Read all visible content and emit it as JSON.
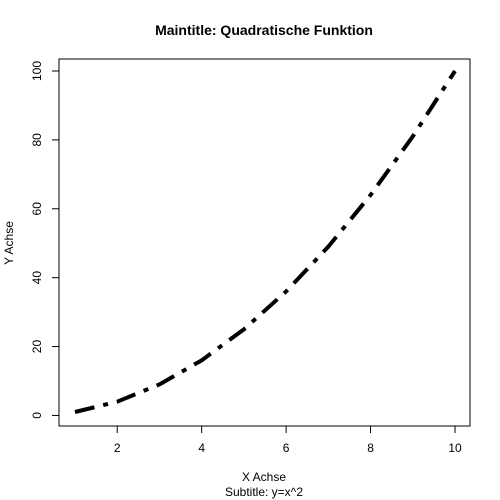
{
  "chart_data": {
    "type": "line",
    "title": "Maintitle: Quadratische Funktion",
    "subtitle": "Subtitle: y=x^2",
    "xlabel": "X Achse",
    "ylabel": "Y Achse",
    "xlim": [
      1,
      10
    ],
    "ylim": [
      1,
      100
    ],
    "xticks": [
      2,
      4,
      6,
      8,
      10
    ],
    "yticks": [
      0,
      20,
      40,
      60,
      80,
      100
    ],
    "grid": false,
    "line_style": "dashdot",
    "line_color": "#000000",
    "series": [
      {
        "x": [
          1,
          2,
          3,
          4,
          5,
          6,
          7,
          8,
          9,
          10
        ],
        "y": [
          1,
          4,
          9,
          16,
          25,
          36,
          49,
          64,
          81,
          100
        ]
      }
    ]
  }
}
